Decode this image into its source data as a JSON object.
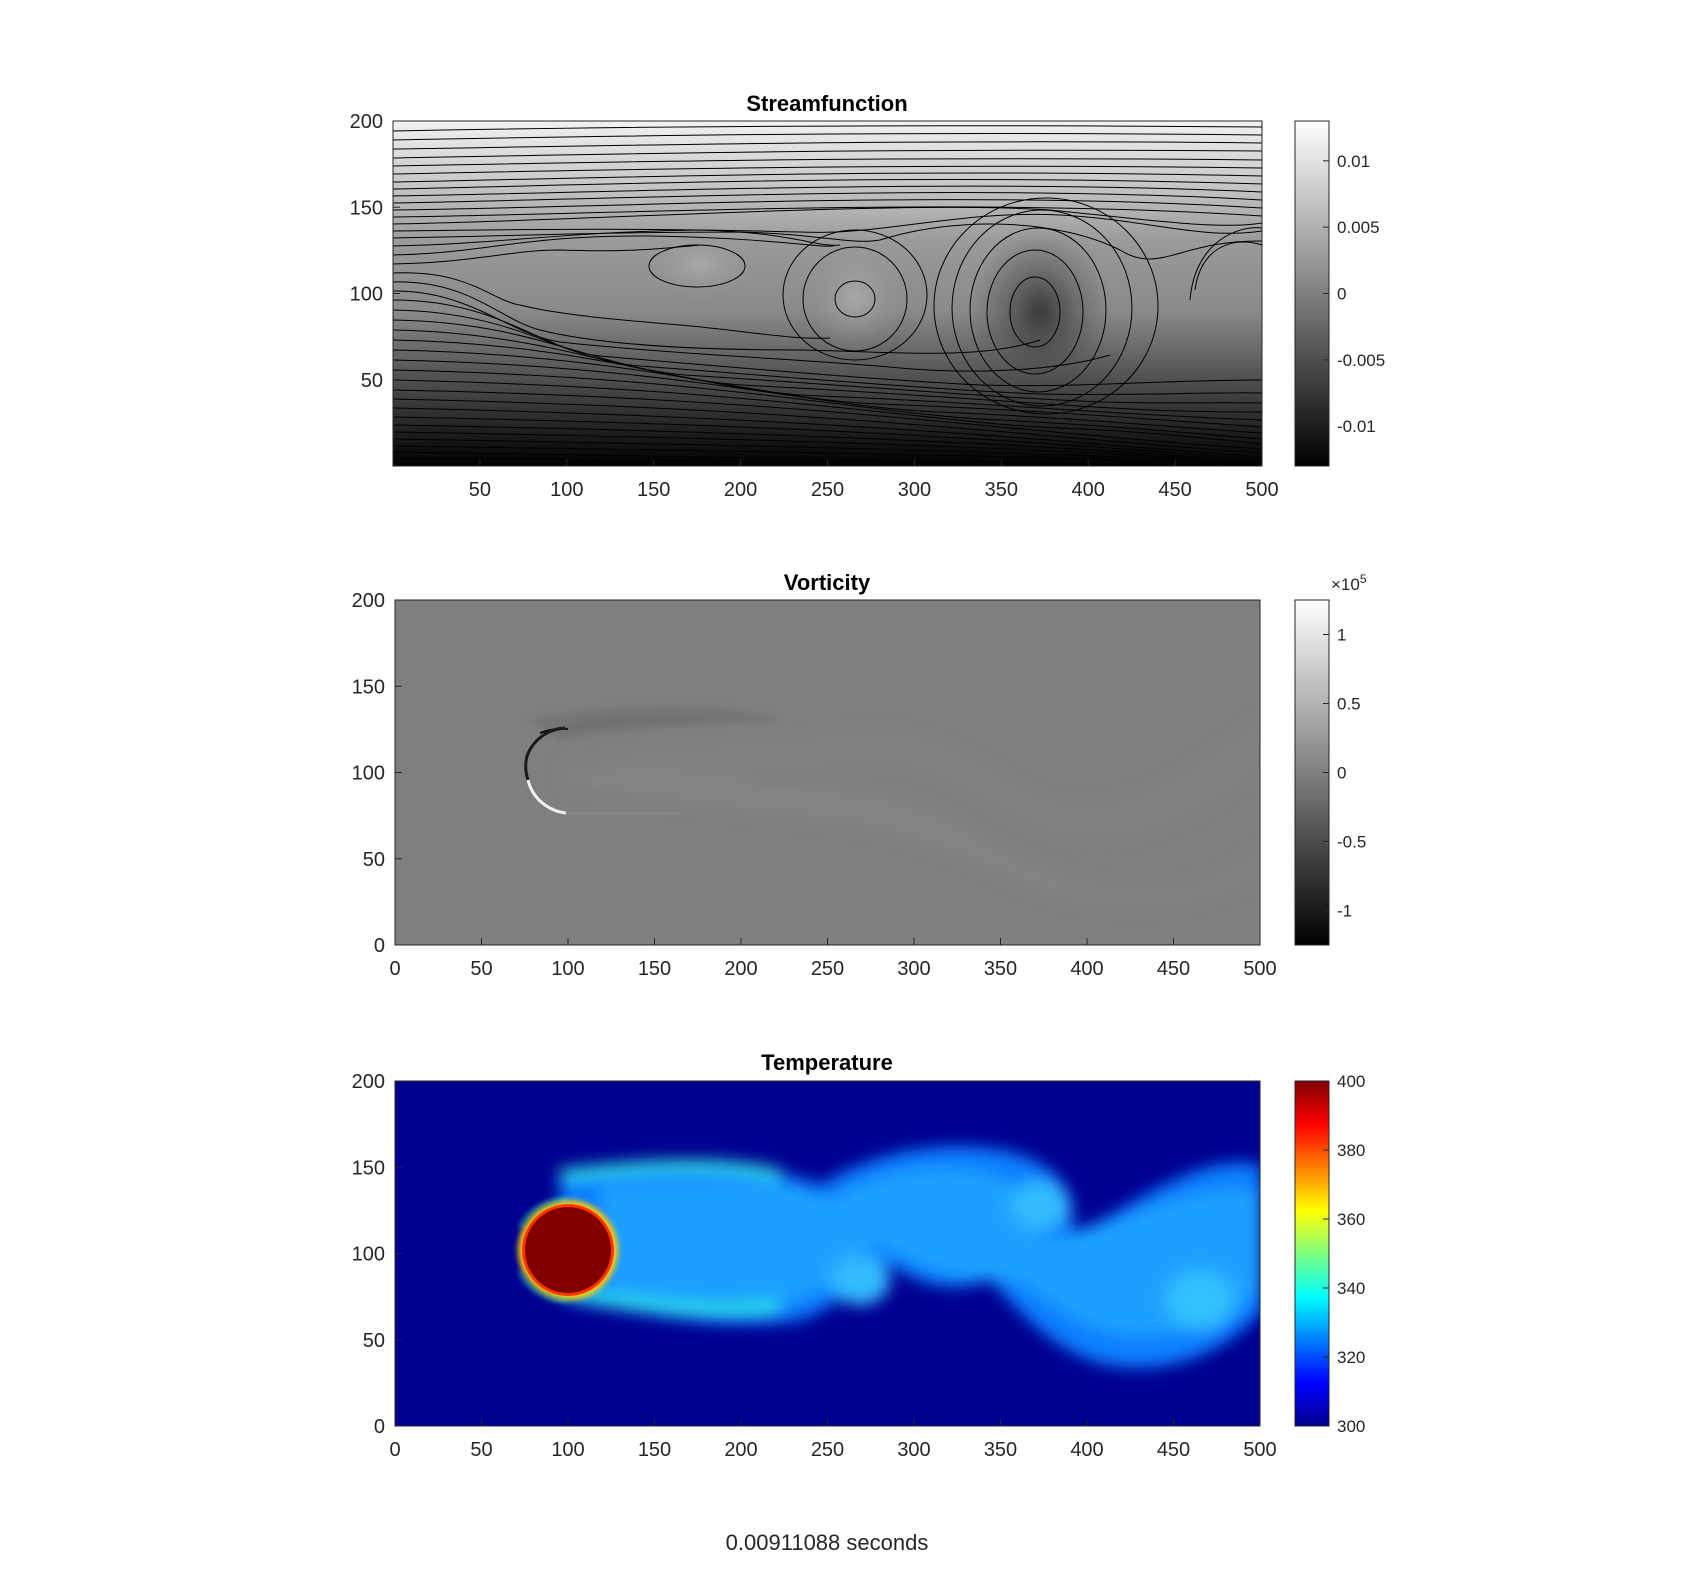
{
  "footer": {
    "time_label": "0.00911088 seconds"
  },
  "chart_data": [
    {
      "type": "contour",
      "title": "Streamfunction",
      "xlabel": "",
      "ylabel": "",
      "xlim": [
        0,
        500
      ],
      "ylim": [
        0,
        200
      ],
      "x_ticks": [
        50,
        100,
        150,
        200,
        250,
        300,
        350,
        400,
        450,
        500
      ],
      "y_ticks": [
        50,
        100,
        150,
        200
      ],
      "colormap": "gray",
      "clim": [
        -0.013,
        0.013
      ],
      "colorbar_ticks": [
        {
          "value": 0.01,
          "label": "0.01"
        },
        {
          "value": 0.005,
          "label": "0.005"
        },
        {
          "value": 0,
          "label": "0"
        },
        {
          "value": -0.005,
          "label": "-0.005"
        },
        {
          "value": -0.01,
          "label": "-0.01"
        }
      ],
      "contour_lines": "black",
      "grid": false
    },
    {
      "type": "heatmap",
      "title": "Vorticity",
      "xlabel": "",
      "ylabel": "",
      "xlim": [
        0,
        500
      ],
      "ylim": [
        0,
        200
      ],
      "x_ticks": [
        0,
        50,
        100,
        150,
        200,
        250,
        300,
        350,
        400,
        450,
        500
      ],
      "y_ticks": [
        0,
        50,
        100,
        150,
        200
      ],
      "colormap": "gray",
      "clim": [
        -1.25,
        1.25
      ],
      "colorbar_exponent": "×10^5",
      "colorbar_exponent_base": "×10",
      "colorbar_exponent_power": "5",
      "colorbar_ticks": [
        {
          "value": 1,
          "label": "1"
        },
        {
          "value": 0.5,
          "label": "0.5"
        },
        {
          "value": 0,
          "label": "0"
        },
        {
          "value": -0.5,
          "label": "-0.5"
        },
        {
          "value": -1,
          "label": "-1"
        }
      ],
      "grid": false
    },
    {
      "type": "heatmap",
      "title": "Temperature",
      "xlabel": "",
      "ylabel": "",
      "xlim": [
        0,
        500
      ],
      "ylim": [
        0,
        200
      ],
      "x_ticks": [
        0,
        50,
        100,
        150,
        200,
        250,
        300,
        350,
        400,
        450,
        500
      ],
      "y_ticks": [
        0,
        50,
        100,
        150,
        200
      ],
      "colormap": "jet",
      "clim": [
        300,
        400
      ],
      "colorbar_ticks": [
        {
          "value": 400,
          "label": "400"
        },
        {
          "value": 380,
          "label": "380"
        },
        {
          "value": 360,
          "label": "360"
        },
        {
          "value": 340,
          "label": "340"
        },
        {
          "value": 320,
          "label": "320"
        },
        {
          "value": 300,
          "label": "300"
        }
      ],
      "obstacle": {
        "shape": "circle",
        "center_x": 100,
        "center_y": 100,
        "radius": 25,
        "value": 400
      },
      "grid": false
    }
  ]
}
